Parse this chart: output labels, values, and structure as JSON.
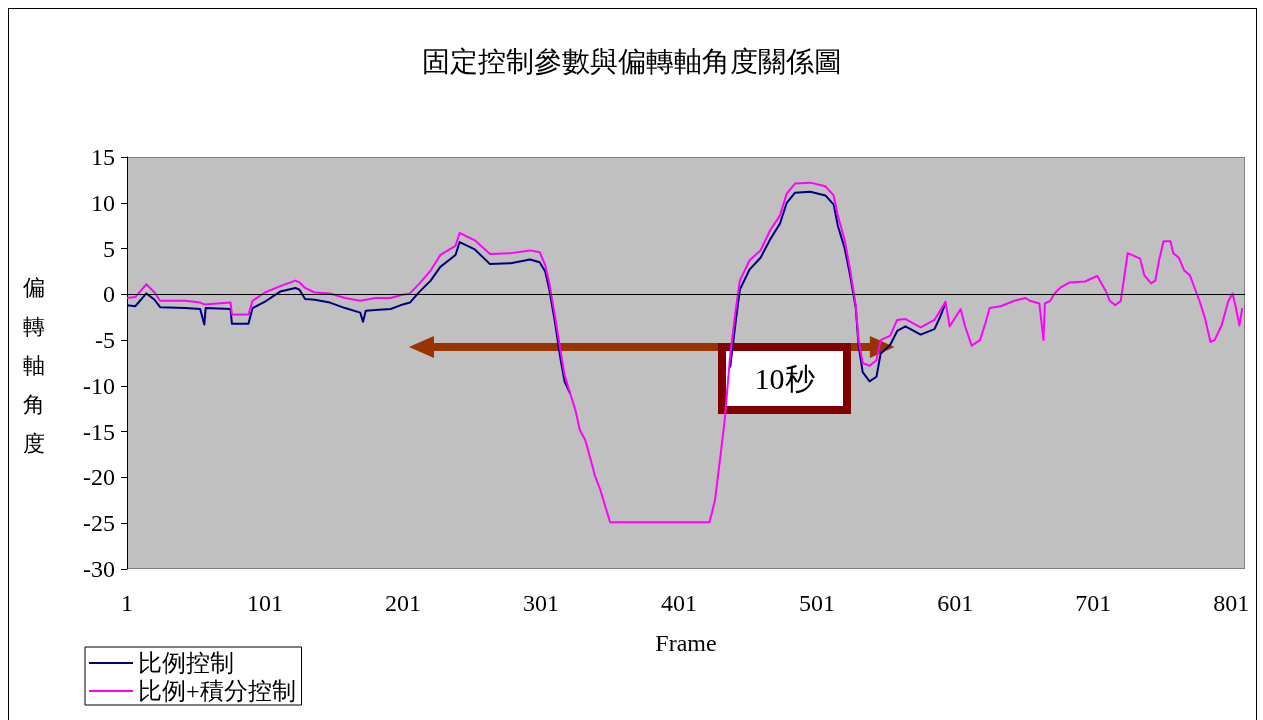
{
  "chart_data": {
    "type": "line",
    "title": "固定控制參數與偏轉軸角度關係圖",
    "xlabel": "Frame",
    "ylabel": "偏轉軸角度",
    "xlim": [
      1,
      811
    ],
    "xticks": [
      1,
      101,
      201,
      301,
      401,
      501,
      601,
      701,
      801
    ],
    "ylim": [
      -30,
      15
    ],
    "yticks": [
      -30,
      -25,
      -20,
      -15,
      -10,
      -5,
      0,
      5,
      10,
      15
    ],
    "grid": false,
    "legend": "bottom left",
    "marker": "none",
    "line_style": "solid",
    "ref_lines": [
      {
        "axis": "y",
        "value": 0,
        "color": "#000000"
      }
    ],
    "annotations": [
      "10秒"
    ],
    "series": [
      {
        "name": "比例控制",
        "color": "#000080",
        "x": [
          1,
          7,
          15,
          21,
          25,
          43,
          54,
          57,
          58,
          76,
          77,
          89,
          92,
          101,
          112,
          123,
          126,
          130,
          137,
          148,
          159,
          170,
          172,
          174,
          181,
          192,
          199,
          206,
          213,
          221,
          228,
          239,
          242,
          253,
          264,
          279,
          293,
          300,
          304,
          307,
          311,
          315,
          318,
          322,
          326,
          329,
          333,
          337,
          340,
          344,
          351,
          423,
          427,
          431,
          434,
          438,
          442,
          445,
          452,
          460,
          467,
          474,
          479,
          485,
          496,
          507,
          513,
          516,
          521,
          525,
          529,
          531,
          534,
          539,
          544,
          547,
          554,
          559,
          565,
          576,
          586,
          590,
          594
        ],
        "values": [
          -1.2,
          -1.3,
          0.1,
          -0.6,
          -1.4,
          -1.5,
          -1.6,
          -3.3,
          -1.5,
          -1.6,
          -3.2,
          -3.2,
          -1.5,
          -0.8,
          0.3,
          0.7,
          0.5,
          -0.5,
          -0.6,
          -0.9,
          -1.5,
          -2.0,
          -3.0,
          -1.8,
          -1.7,
          -1.6,
          -1.2,
          -0.9,
          0.3,
          1.5,
          3.0,
          4.3,
          5.7,
          4.9,
          3.3,
          3.4,
          3.8,
          3.5,
          2.5,
          0.5,
          -3.0,
          -7.0,
          -9.5,
          -10.8,
          null,
          null,
          null,
          null,
          null,
          null,
          null,
          null,
          null,
          null,
          null,
          -8.0,
          -3.0,
          0.5,
          2.7,
          4.0,
          6.0,
          7.7,
          10.0,
          11.1,
          11.2,
          10.8,
          9.8,
          7.5,
          5.0,
          2.0,
          -1.5,
          -5.5,
          -8.5,
          -9.5,
          -9.0,
          -6.5,
          -5.5,
          -4.0,
          -3.5,
          -4.4,
          -3.8,
          -2.5,
          -1.0
        ]
      },
      {
        "name": "比例+積分控制",
        "color": "#ff00ff",
        "x": [
          1,
          7,
          15,
          21,
          25,
          43,
          54,
          57,
          76,
          77,
          89,
          92,
          101,
          112,
          123,
          126,
          130,
          137,
          148,
          159,
          170,
          181,
          192,
          199,
          206,
          213,
          221,
          228,
          239,
          242,
          253,
          264,
          279,
          293,
          300,
          304,
          307,
          311,
          315,
          318,
          322,
          326,
          329,
          333,
          337,
          340,
          344,
          351,
          423,
          427,
          431,
          434,
          438,
          442,
          445,
          452,
          460,
          467,
          474,
          479,
          485,
          496,
          507,
          513,
          516,
          521,
          525,
          529,
          531,
          534,
          539,
          544,
          547,
          554,
          559,
          565,
          576,
          586,
          594,
          597,
          605,
          608,
          613,
          619,
          623,
          626,
          634,
          644,
          652,
          655,
          662,
          665,
          666,
          670,
          673,
          677,
          684,
          695,
          704,
          710,
          713,
          717,
          721,
          724,
          726,
          735,
          738,
          743,
          746,
          749,
          752,
          757,
          759,
          763,
          767,
          771,
          778,
          782,
          786,
          789,
          794,
          799,
          802,
          804,
          807,
          809
        ],
        "values": [
          -0.4,
          -0.3,
          1.1,
          0.2,
          -0.7,
          -0.7,
          -0.9,
          -1.1,
          -0.9,
          -2.2,
          -2.2,
          -0.7,
          0.2,
          0.9,
          1.5,
          1.3,
          0.7,
          0.2,
          0.1,
          -0.4,
          -0.7,
          -0.4,
          -0.4,
          -0.1,
          0.1,
          1.2,
          2.6,
          4.3,
          5.3,
          6.7,
          5.9,
          4.4,
          4.5,
          4.8,
          4.6,
          3.2,
          1.2,
          -2.3,
          -6.1,
          -8.8,
          -10.8,
          -12.7,
          -14.8,
          -15.9,
          -18.1,
          -19.8,
          -21.4,
          -24.9,
          -24.9,
          -22.5,
          -17.6,
          -13.8,
          -6.7,
          -1.7,
          1.5,
          3.7,
          4.8,
          7.0,
          8.6,
          11.0,
          12.1,
          12.2,
          11.8,
          10.8,
          8.6,
          5.9,
          2.6,
          -1.2,
          -5.0,
          -7.5,
          -7.8,
          -7.2,
          -5.0,
          -4.5,
          -2.8,
          -2.7,
          -3.6,
          -2.8,
          -0.8,
          -3.5,
          -1.6,
          -3.4,
          -5.6,
          -5.0,
          -3.1,
          -1.5,
          -1.3,
          -0.7,
          -0.4,
          -0.7,
          -1.0,
          -5.0,
          -1.0,
          -0.7,
          0.1,
          0.7,
          1.3,
          1.4,
          2.0,
          0.4,
          -0.7,
          -1.2,
          -0.7,
          2.4,
          4.5,
          3.9,
          2.1,
          1.2,
          1.5,
          3.9,
          5.8,
          5.8,
          4.5,
          4.0,
          2.6,
          2.1,
          -0.7,
          -2.6,
          -5.2,
          -5.0,
          -3.4,
          -0.7,
          0.1,
          -1.2,
          -3.4,
          -1.5
        ]
      }
    ]
  }
}
